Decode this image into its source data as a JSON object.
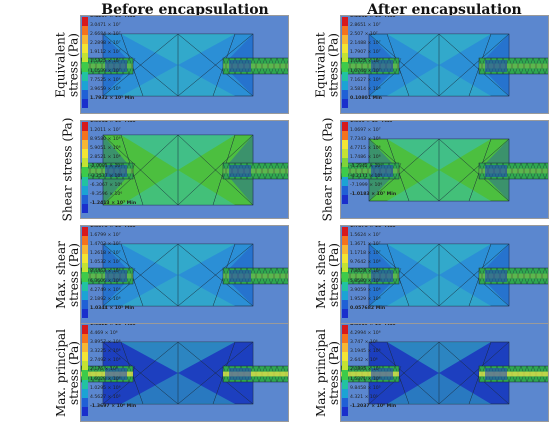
{
  "columns": [
    {
      "title": "Before encapsulation"
    },
    {
      "title": "After encapsulation"
    }
  ],
  "legend_colors": [
    "#d7191c",
    "#f4731d",
    "#f7b733",
    "#f3e535",
    "#c4e334",
    "#7fd43b",
    "#3ccb4a",
    "#22c3a0",
    "#1ba3d4",
    "#2060d6",
    "#1a2fcc"
  ],
  "colors": {
    "background": "#5b87cf",
    "tube": "#2fa84f",
    "body_dark": "#1d3fbf",
    "body_mid": "#2b8fd6",
    "body_light": "#39c0c2",
    "body_green": "#4cbf3f",
    "mesh": "#1b2a3a"
  },
  "rows": [
    {
      "label_lines": [
        "Equivalent",
        "stress (Pa)"
      ],
      "before": [
        "3.4257 × 10⁷ Max",
        "3.0471 × 10⁷",
        "2.6684 × 10⁷",
        "2.2898 × 10⁷",
        "1.9112 × 10⁷",
        "1.5325 × 10⁷",
        "1.1539 × 10⁷",
        "7.7525 × 10⁶",
        "3.9659 × 10⁶",
        "1.7932 × 10⁵ Min"
      ],
      "after": [
        "3.2232 × 10⁷ Max",
        "2.8651 × 10⁷",
        "2.507 × 10⁷",
        "2.1488 × 10⁷",
        "1.7907 × 10⁷",
        "1.4325 × 10⁷",
        "1.0744 × 10⁷",
        "7.1627 × 10⁶",
        "3.5814 × 10⁶",
        "0.10801 Min"
      ]
    },
    {
      "label_lines": [
        "Shear stress (Pa)"
      ],
      "before": [
        "1.5064 × 10⁷ Max",
        "1.2011 × 10⁷",
        "8.9580 × 10⁶",
        "5.9051 × 10⁶",
        "2.8521 × 10⁶",
        "-2.0081 × 10⁵",
        "-3.2537 × 10⁶",
        "-6.3067 × 10⁶",
        "-9.3596 × 10⁶",
        "-1.2413 × 10⁷ Min"
      ],
      "after": [
        "1.366 × 10⁷ Max",
        "1.0697 × 10⁷",
        "7.7343 × 10⁶",
        "4.7715 × 10⁶",
        "1.7486 × 10⁶",
        "-1.2342 × 10⁶",
        "-4.2171 × 10⁶",
        "-7.1999 × 10⁶",
        "-1.0183 × 10⁷ Min"
      ]
    },
    {
      "label_lines": [
        "Max. shear",
        "stress (Pa)"
      ],
      "before": [
        "1.8075 × 10⁷ Max",
        "1.6799 × 10⁷",
        "1.4703 × 10⁷",
        "1.2618 × 10⁷",
        "1.0532 × 10⁷",
        "8.4463 × 10⁶",
        "6.3606 × 10⁶",
        "4.2749 × 10⁶",
        "2.1892 × 10⁶",
        "1.0344 × 10⁵ Min"
      ],
      "after": [
        "1.7376 × 10⁷ Max",
        "1.5624 × 10⁷",
        "1.3671 × 10⁷",
        "1.1718 × 10⁷",
        "9.7642 × 10⁶",
        "7.8028 × 10⁶",
        "5.8580 × 10⁶",
        "3.9059 × 10⁶",
        "1.9529 × 10⁶",
        "0.057682 Min"
      ]
    },
    {
      "label_lines": [
        "Max. principal",
        "stress (Pa)"
      ],
      "before": [
        "1.0422 × 10⁷ Max",
        "4.469 × 10⁶",
        "3.8957 × 10⁶",
        "3.3225 × 10⁶",
        "2.7492 × 10⁶",
        "2.176 × 10⁶",
        "1.6028 × 10⁶",
        "1.0295 × 10⁶",
        "4.5627 × 10⁵",
        "-1.3697 × 10⁶ Min"
      ],
      "after": [
        "4.8019 × 10⁷ Max",
        "4.2994 × 10⁶",
        "3.747 × 10⁶",
        "3.1945 × 10⁶",
        "2.642 × 10⁶",
        "2.0895 × 10⁶",
        "1.5371 × 10⁶",
        "9.8458 × 10⁵",
        "4.321 × 10⁵",
        "-1.2037 × 10⁶ Min"
      ]
    }
  ]
}
